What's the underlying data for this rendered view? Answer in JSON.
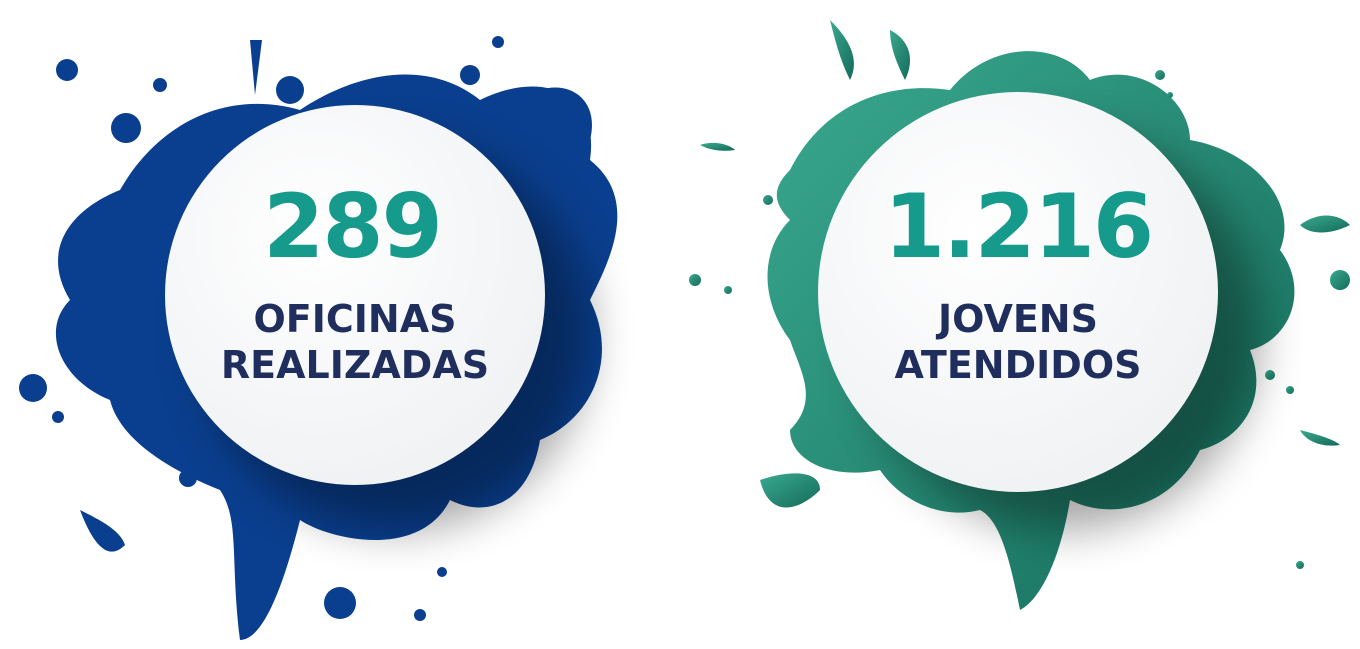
{
  "stats": [
    {
      "value": "289",
      "label_lines": [
        "OFICINAS",
        "REALIZADAS"
      ]
    },
    {
      "value": "1.216",
      "label_lines": [
        "JOVENS",
        "ATENDIDOS"
      ]
    }
  ]
}
